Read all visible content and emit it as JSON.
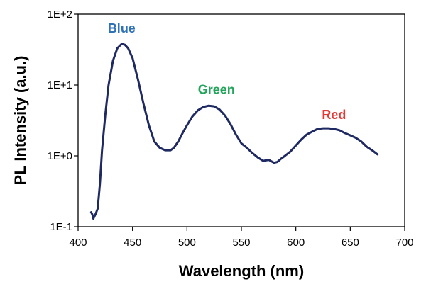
{
  "chart_data": {
    "type": "line",
    "xlabel": "Wavelength (nm)",
    "ylabel": "PL Intensity (a.u.)",
    "xlim": [
      400,
      700
    ],
    "ylim": [
      0.1,
      100
    ],
    "y_scale": "log",
    "grid": false,
    "x_ticks": [
      400,
      450,
      500,
      550,
      600,
      650,
      700
    ],
    "x_tick_labels": [
      "400",
      "450",
      "500",
      "550",
      "600",
      "650",
      "700"
    ],
    "y_ticks": [
      0.1,
      1,
      10,
      100
    ],
    "y_tick_labels": [
      "1E-1",
      "1E+0",
      "1E+1",
      "1E+2"
    ],
    "series": [
      {
        "color": "#1f2a63",
        "x": [
          412,
          413,
          414,
          415,
          416,
          418,
          420,
          422,
          425,
          428,
          432,
          436,
          440,
          443,
          446,
          450,
          455,
          460,
          465,
          470,
          475,
          480,
          485,
          488,
          492,
          496,
          500,
          505,
          510,
          515,
          520,
          525,
          530,
          535,
          540,
          545,
          550,
          555,
          560,
          565,
          570,
          575,
          580,
          583,
          586,
          590,
          595,
          600,
          605,
          610,
          615,
          620,
          625,
          630,
          635,
          640,
          645,
          650,
          655,
          660,
          665,
          670,
          675
        ],
        "y": [
          0.16,
          0.15,
          0.13,
          0.14,
          0.15,
          0.18,
          0.4,
          1.2,
          3.8,
          10,
          22,
          33,
          38,
          37,
          33,
          24,
          12,
          5.5,
          2.7,
          1.6,
          1.3,
          1.2,
          1.2,
          1.3,
          1.6,
          2.1,
          2.7,
          3.6,
          4.4,
          4.9,
          5.1,
          5.0,
          4.5,
          3.7,
          2.8,
          2.0,
          1.5,
          1.3,
          1.1,
          0.95,
          0.85,
          0.88,
          0.8,
          0.82,
          0.9,
          1.0,
          1.15,
          1.4,
          1.7,
          2.0,
          2.2,
          2.4,
          2.45,
          2.45,
          2.4,
          2.3,
          2.1,
          1.95,
          1.8,
          1.6,
          1.35,
          1.2,
          1.05
        ]
      }
    ],
    "annotations": [
      {
        "text": "Blue",
        "x": 440,
        "y": 55,
        "color": "#2f72b8"
      },
      {
        "text": "Green",
        "x": 527,
        "y": 7.5,
        "color": "#22a55a"
      },
      {
        "text": "Red",
        "x": 635,
        "y": 3.3,
        "color": "#e53935"
      }
    ]
  }
}
